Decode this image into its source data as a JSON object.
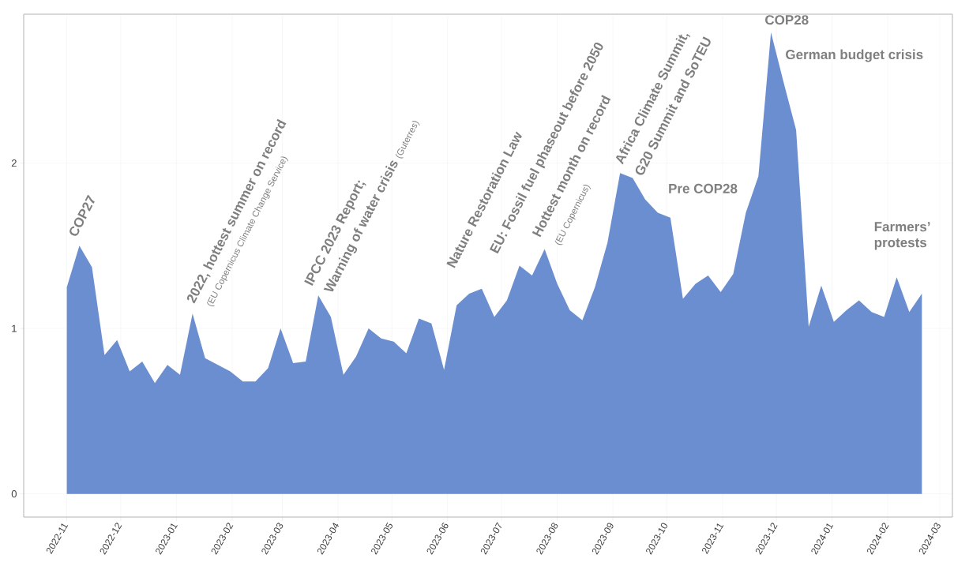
{
  "chart_data": {
    "type": "area",
    "color": "#6a8ecf",
    "grid": true,
    "x": [
      "2022-11-01",
      "2022-11-08",
      "2022-11-15",
      "2022-11-22",
      "2022-11-29",
      "2022-12-06",
      "2022-12-13",
      "2022-12-20",
      "2022-12-27",
      "2023-01-03",
      "2023-01-10",
      "2023-01-17",
      "2023-01-24",
      "2023-01-31",
      "2023-02-07",
      "2023-02-14",
      "2023-02-21",
      "2023-02-28",
      "2023-03-07",
      "2023-03-14",
      "2023-03-21",
      "2023-03-28",
      "2023-04-04",
      "2023-04-11",
      "2023-04-18",
      "2023-04-25",
      "2023-05-02",
      "2023-05-09",
      "2023-05-16",
      "2023-05-23",
      "2023-05-30",
      "2023-06-06",
      "2023-06-13",
      "2023-06-20",
      "2023-06-27",
      "2023-07-04",
      "2023-07-11",
      "2023-07-18",
      "2023-07-25",
      "2023-08-01",
      "2023-08-08",
      "2023-08-15",
      "2023-08-22",
      "2023-08-29",
      "2023-09-05",
      "2023-09-12",
      "2023-09-19",
      "2023-09-26",
      "2023-10-03",
      "2023-10-10",
      "2023-10-17",
      "2023-10-24",
      "2023-10-31",
      "2023-11-07",
      "2023-11-14",
      "2023-11-21",
      "2023-11-28",
      "2023-12-05",
      "2023-12-12",
      "2023-12-19",
      "2023-12-26",
      "2024-01-02",
      "2024-01-09",
      "2024-01-16",
      "2024-01-23",
      "2024-01-30",
      "2024-02-06",
      "2024-02-13",
      "2024-02-20"
    ],
    "values": [
      1.25,
      1.5,
      1.37,
      0.84,
      0.93,
      0.74,
      0.8,
      0.67,
      0.78,
      0.72,
      1.09,
      0.82,
      0.78,
      0.74,
      0.68,
      0.68,
      0.76,
      1.0,
      0.79,
      0.8,
      1.2,
      1.07,
      0.72,
      0.83,
      1.0,
      0.94,
      0.92,
      0.85,
      1.06,
      1.03,
      0.75,
      1.14,
      1.21,
      1.24,
      1.07,
      1.17,
      1.38,
      1.32,
      1.48,
      1.27,
      1.11,
      1.05,
      1.25,
      1.52,
      1.94,
      1.91,
      1.78,
      1.7,
      1.67,
      1.18,
      1.27,
      1.32,
      1.22,
      1.33,
      1.7,
      1.92,
      2.79,
      2.49,
      2.2,
      1.01,
      1.26,
      1.04,
      1.11,
      1.17,
      1.1,
      1.07,
      1.31,
      1.1,
      1.21
    ],
    "xlim": [
      "2022-10-08",
      "2024-03-08"
    ],
    "xticks": [
      "2022-11",
      "2022-12",
      "2023-01",
      "2023-02",
      "2023-03",
      "2023-04",
      "2023-05",
      "2023-06",
      "2023-07",
      "2023-08",
      "2023-09",
      "2023-10",
      "2023-11",
      "2023-12",
      "2024-01",
      "2024-02",
      "2024-03"
    ],
    "ylim": [
      -0.14,
      2.9
    ],
    "yticks": [
      0,
      1,
      2
    ],
    "annotations": [
      {
        "text": "COP27",
        "x": "2022-11-08",
        "y": 1.5
      },
      {
        "text": "2022, hottest summer on record",
        "x": "2023-01-10",
        "y": 1.09
      },
      {
        "text": "(EU Copernicus Climate Change Service)",
        "x": "2023-01-10",
        "y": 1.09
      },
      {
        "text": "IPCC 2023 Report;",
        "x": "2023-03-21",
        "y": 1.2
      },
      {
        "text": "Warning of water crisis",
        "x": "2023-03-21",
        "y": 1.2
      },
      "(Guterres)",
      {
        "text": "Nature Restoration Law",
        "x": "2023-06-06",
        "y": 1.14
      },
      {
        "text": "EU: Fossil fuel phaseout before 2050",
        "x": "2023-07-11",
        "y": 1.38
      },
      {
        "text": "Hottest month on record",
        "x": "2023-07-25",
        "y": 1.48
      },
      {
        "text": "(EU Copernicus)",
        "x": "2023-07-25",
        "y": 1.48
      },
      {
        "text": "Africa Climate Summit,",
        "x": "2023-09-05",
        "y": 1.94
      },
      {
        "text": "G20 Summit and SoTEU",
        "x": "2023-09-05",
        "y": 1.94
      },
      {
        "text": "Pre COP28",
        "x": "2023-10-03",
        "y": 1.67
      },
      {
        "text": "COP28",
        "x": "2023-11-28",
        "y": 2.79
      },
      {
        "text": "German budget crisis",
        "x": "2023-12-05",
        "y": 2.49
      },
      {
        "text": "Farmers’ protests",
        "x": "2024-02-06",
        "y": 1.31
      }
    ]
  }
}
